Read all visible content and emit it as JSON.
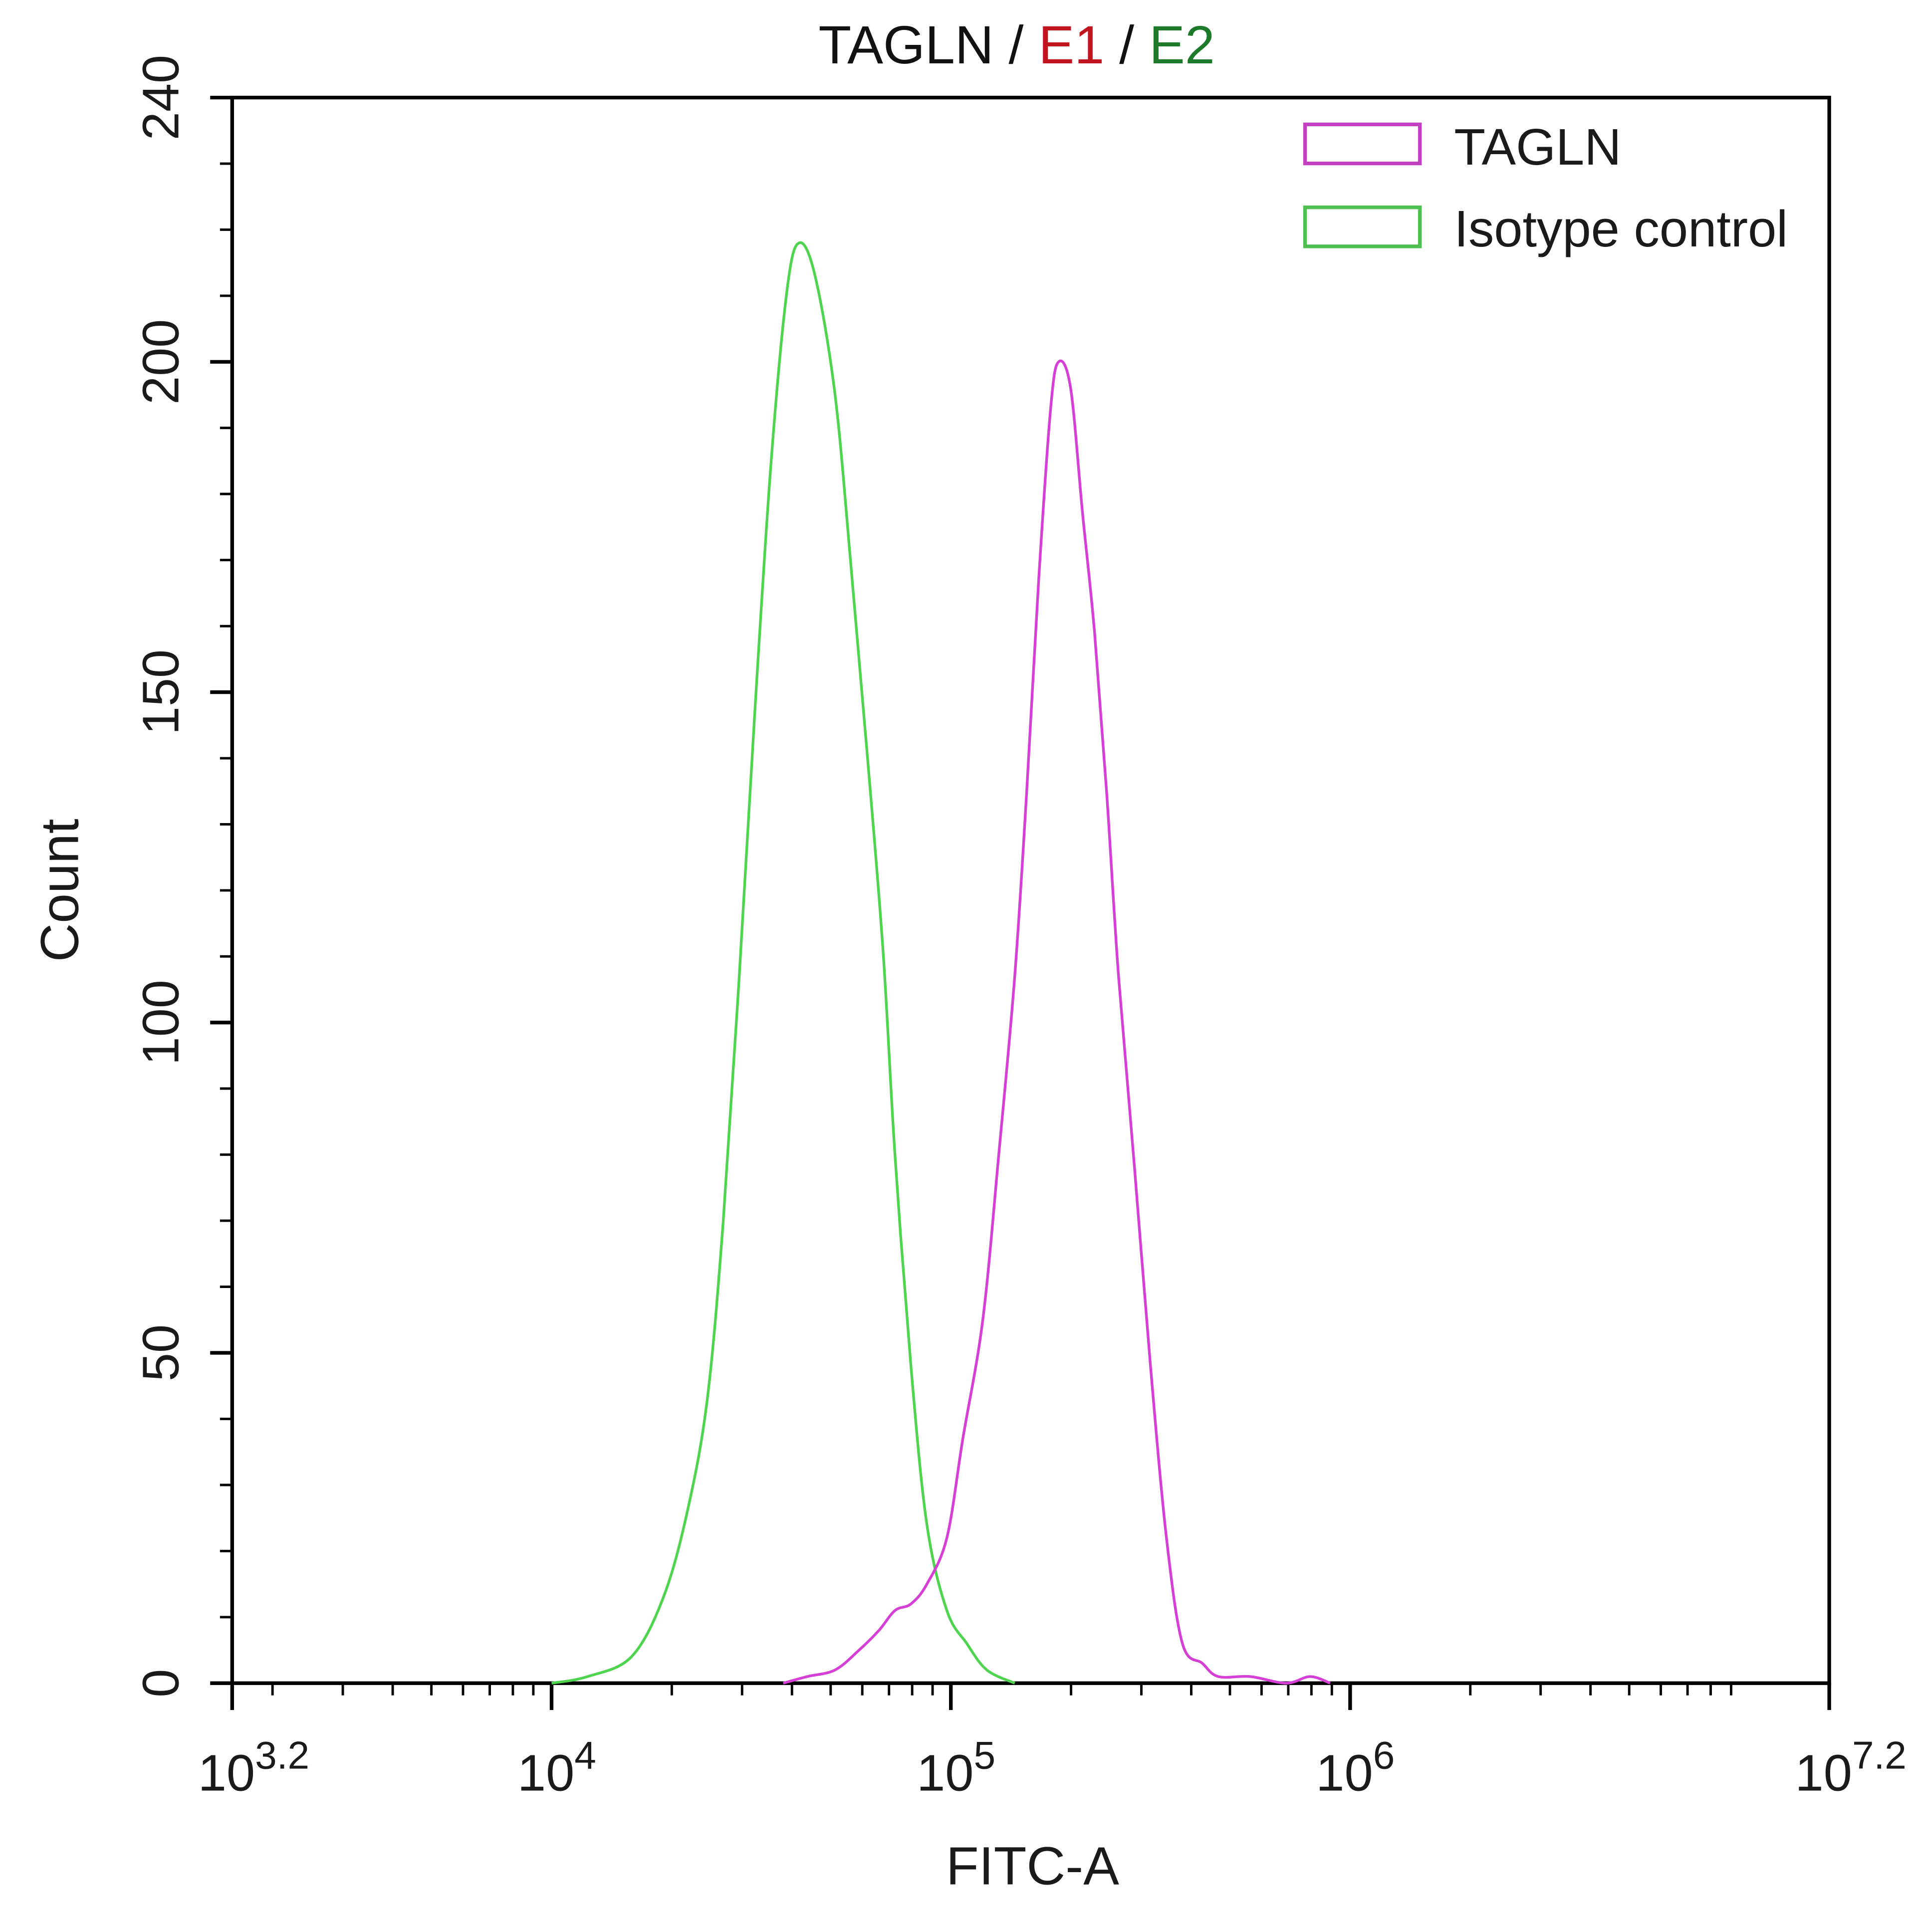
{
  "chart_data": {
    "type": "line",
    "title": "TAGLN / E1 / E2",
    "title_parts": [
      {
        "text": "TAGLN",
        "color": "#111111"
      },
      {
        "text": " / ",
        "color": "#111111"
      },
      {
        "text": "E1",
        "color": "#c0141e"
      },
      {
        "text": " / ",
        "color": "#111111"
      },
      {
        "text": "E2",
        "color": "#1e7a2a"
      }
    ],
    "xlabel": "FITC-A",
    "ylabel": "Count",
    "xscale": "log",
    "xlim_log10": [
      3.2,
      7.2
    ],
    "ylim": [
      0,
      240
    ],
    "x_ticks": [
      {
        "base": "10",
        "exp": "3.2",
        "log10": 3.2
      },
      {
        "base": "10",
        "exp": "4",
        "log10": 4
      },
      {
        "base": "10",
        "exp": "5",
        "log10": 5
      },
      {
        "base": "10",
        "exp": "6",
        "log10": 6
      },
      {
        "base": "10",
        "exp": "7.2",
        "log10": 7.2
      }
    ],
    "y_ticks": [
      "0",
      "50",
      "100",
      "150",
      "200",
      "240"
    ],
    "grid": false,
    "legend_position": "top-right",
    "series": [
      {
        "name": "TAGLN",
        "color": "#d63fd6",
        "peak_x_log10": 5.27,
        "peak_count": 200,
        "points_log10_count": [
          [
            4.58,
            0
          ],
          [
            4.64,
            1
          ],
          [
            4.71,
            2
          ],
          [
            4.77,
            5
          ],
          [
            4.82,
            8
          ],
          [
            4.86,
            11
          ],
          [
            4.9,
            12
          ],
          [
            4.94,
            15
          ],
          [
            4.99,
            22
          ],
          [
            5.03,
            37
          ],
          [
            5.08,
            55
          ],
          [
            5.12,
            80
          ],
          [
            5.16,
            107
          ],
          [
            5.19,
            135
          ],
          [
            5.22,
            167
          ],
          [
            5.25,
            193
          ],
          [
            5.27,
            200
          ],
          [
            5.3,
            196
          ],
          [
            5.33,
            177
          ],
          [
            5.36,
            159
          ],
          [
            5.39,
            135
          ],
          [
            5.42,
            107
          ],
          [
            5.46,
            78
          ],
          [
            5.5,
            48
          ],
          [
            5.54,
            22
          ],
          [
            5.58,
            6
          ],
          [
            5.63,
            3
          ],
          [
            5.67,
            1
          ],
          [
            5.75,
            1
          ],
          [
            5.84,
            0
          ],
          [
            5.9,
            1
          ],
          [
            5.95,
            0
          ]
        ]
      },
      {
        "name": "Isotype control",
        "color": "#4fd44f",
        "peak_x_log10": 4.62,
        "peak_count": 218,
        "points_log10_count": [
          [
            4.0,
            0
          ],
          [
            4.09,
            1
          ],
          [
            4.2,
            4
          ],
          [
            4.28,
            13
          ],
          [
            4.34,
            26
          ],
          [
            4.39,
            43
          ],
          [
            4.43,
            70
          ],
          [
            4.47,
            107
          ],
          [
            4.51,
            148
          ],
          [
            4.55,
            185
          ],
          [
            4.59,
            211
          ],
          [
            4.62,
            218
          ],
          [
            4.66,
            213
          ],
          [
            4.71,
            195
          ],
          [
            4.75,
            169
          ],
          [
            4.79,
            141
          ],
          [
            4.83,
            111
          ],
          [
            4.86,
            80
          ],
          [
            4.9,
            48
          ],
          [
            4.94,
            24
          ],
          [
            4.99,
            11
          ],
          [
            5.04,
            6
          ],
          [
            5.09,
            2
          ],
          [
            5.16,
            0
          ]
        ]
      }
    ]
  },
  "legend": {
    "items": [
      {
        "label": "TAGLN",
        "color": "#c040c0"
      },
      {
        "label": "Isotype control",
        "color": "#4fc04f"
      }
    ]
  }
}
